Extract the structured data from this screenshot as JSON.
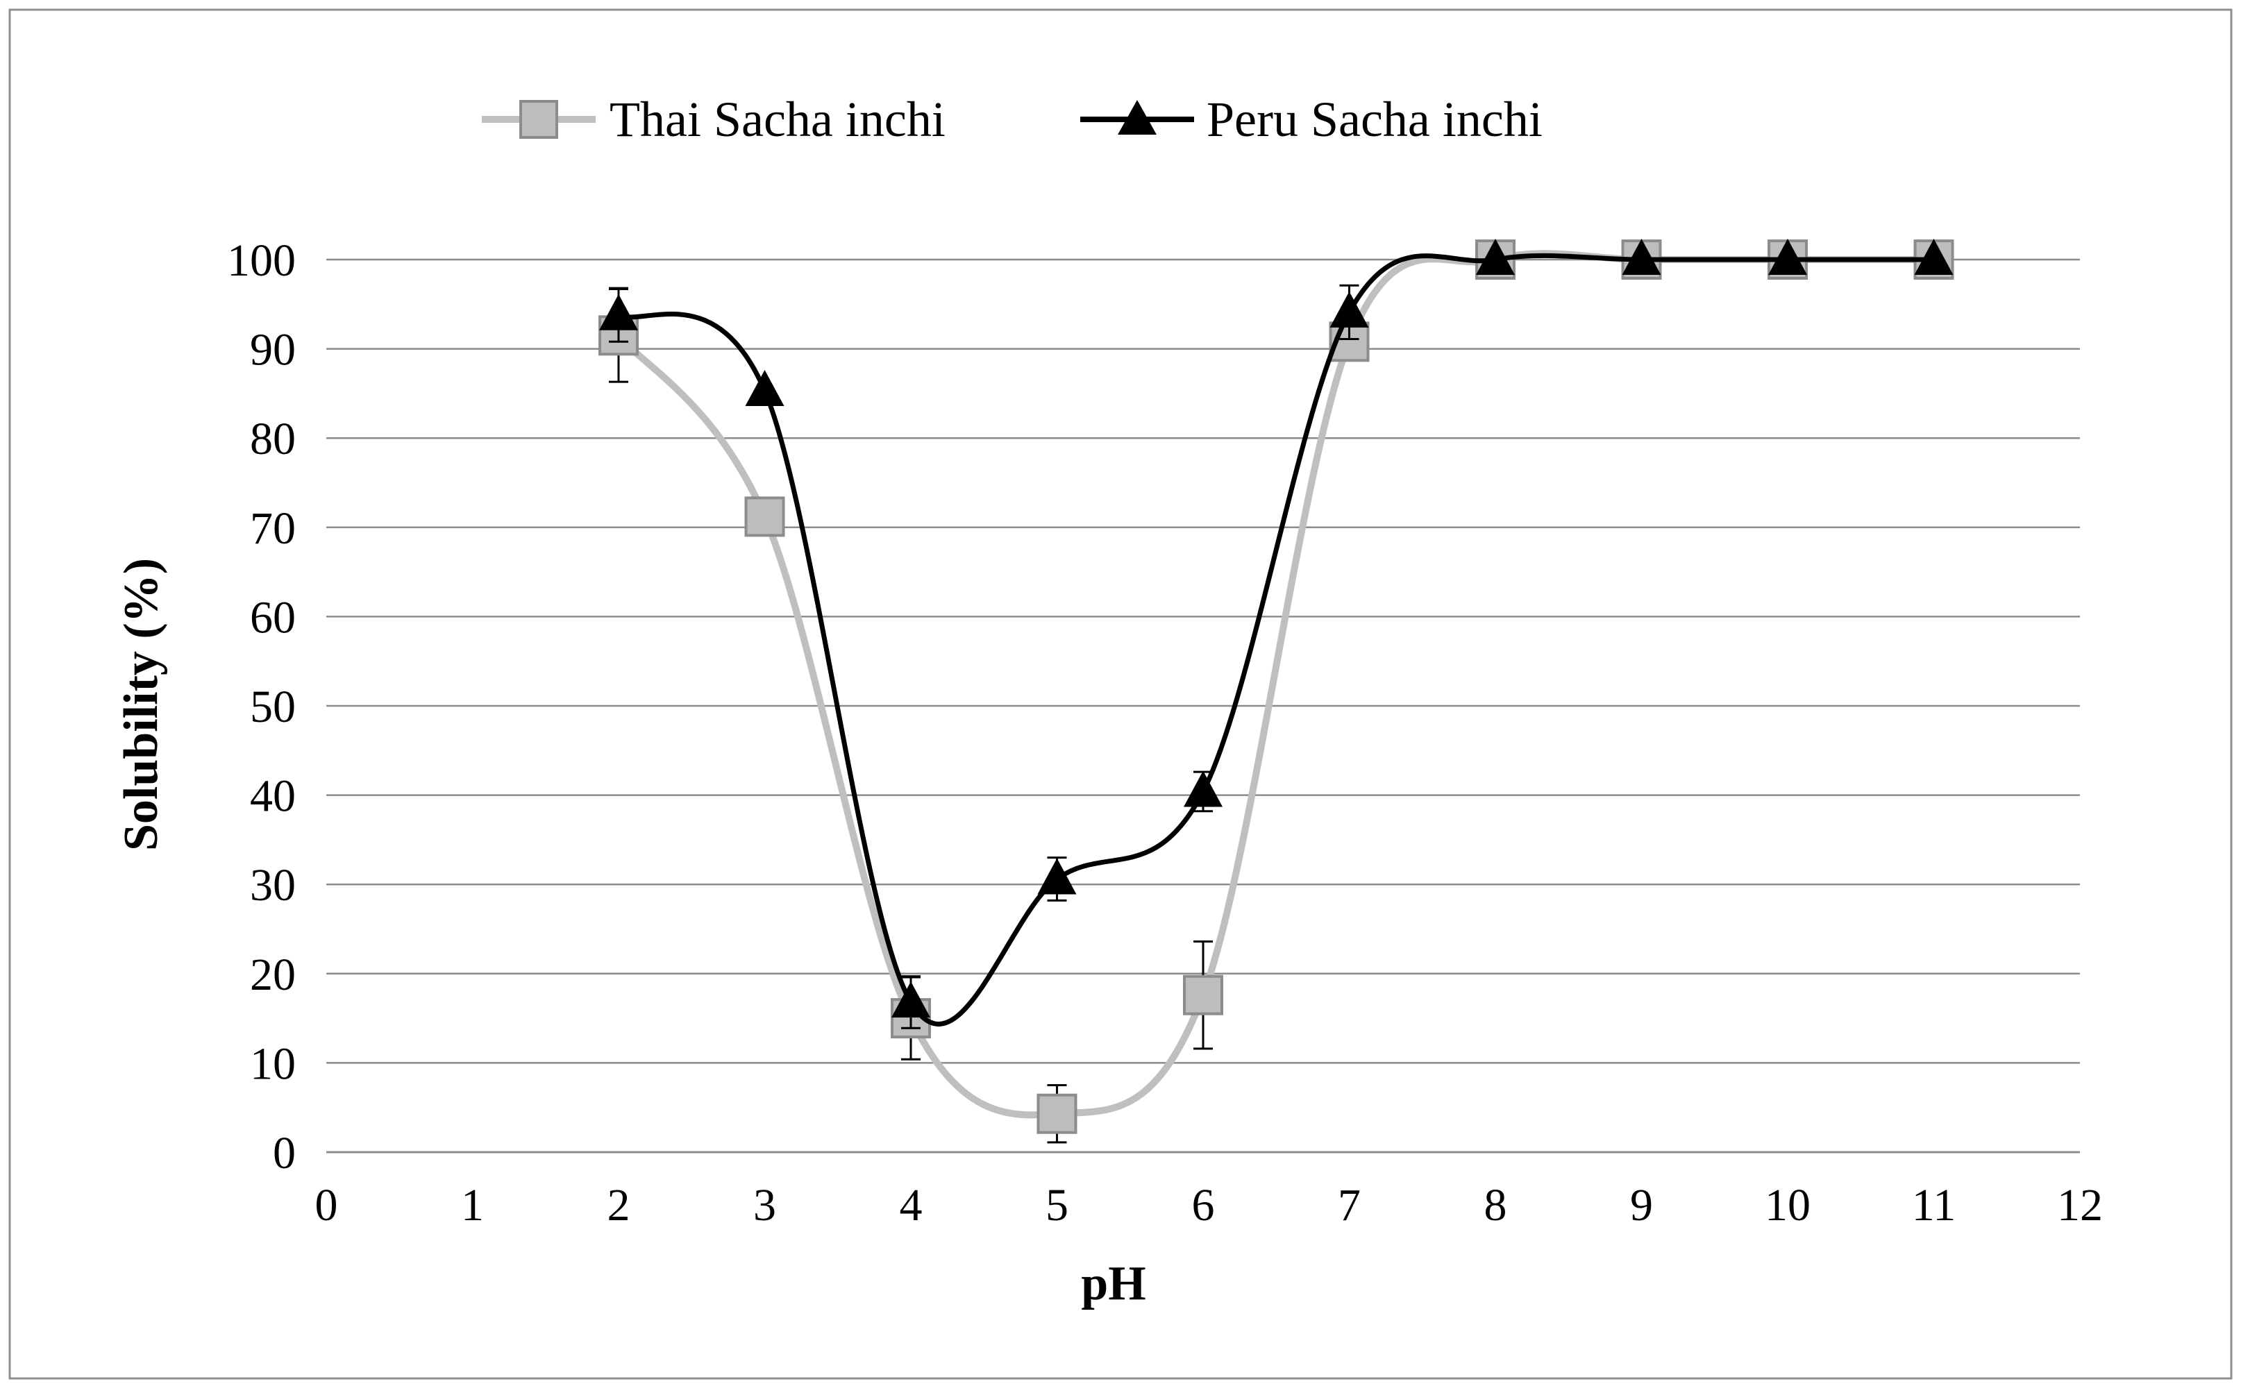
{
  "chart_data": {
    "type": "line",
    "title": "",
    "xlabel": "pH",
    "ylabel": "Solubility  (%)",
    "xlim": [
      0,
      12
    ],
    "ylim": [
      0,
      100
    ],
    "x_ticks": [
      0,
      1,
      2,
      3,
      4,
      5,
      6,
      7,
      8,
      9,
      10,
      11,
      12
    ],
    "y_ticks": [
      0,
      10,
      20,
      30,
      40,
      50,
      60,
      70,
      80,
      90,
      100
    ],
    "grid": "horizontal",
    "legend_position": "top",
    "smoothed": true,
    "series": [
      {
        "name": "Thai Sacha inchi",
        "marker": "square",
        "color": "#bfbfbf",
        "marker_fill": "#bdbdbd",
        "marker_stroke": "#8c8c8c",
        "x": [
          2,
          3,
          4,
          5,
          6,
          7,
          8,
          9,
          10,
          11
        ],
        "y": [
          91.5,
          71.2,
          15.0,
          4.3,
          17.6,
          90.8,
          100,
          100,
          100,
          100
        ],
        "error": [
          5.2,
          0,
          4.6,
          3.2,
          6.0,
          0,
          0,
          0,
          0,
          0
        ]
      },
      {
        "name": "Peru Sacha inchi",
        "marker": "triangle",
        "color": "#000000",
        "marker_fill": "#000000",
        "marker_stroke": "#000000",
        "x": [
          2,
          3,
          4,
          5,
          6,
          7,
          8,
          9,
          10,
          11
        ],
        "y": [
          93.8,
          85.3,
          16.8,
          30.6,
          40.4,
          94.1,
          100,
          100,
          100,
          100
        ],
        "error": [
          3.0,
          0,
          2.9,
          2.4,
          2.2,
          3.0,
          0,
          0,
          0,
          0
        ]
      }
    ]
  }
}
